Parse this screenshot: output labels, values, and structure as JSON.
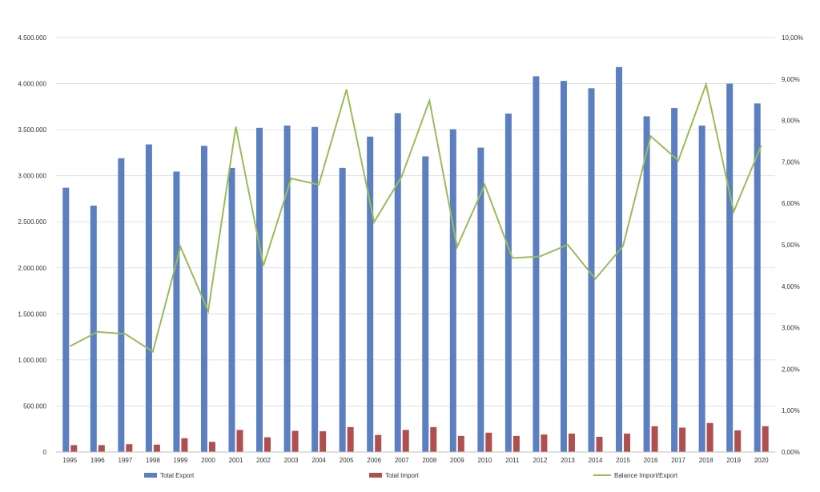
{
  "chart_data": {
    "type": "bar",
    "categories": [
      "1995",
      "1996",
      "1997",
      "1998",
      "1999",
      "2000",
      "2001",
      "2002",
      "2003",
      "2004",
      "2005",
      "2006",
      "2007",
      "2008",
      "2009",
      "2010",
      "2011",
      "2012",
      "2013",
      "2014",
      "2015",
      "2016",
      "2017",
      "2018",
      "2019",
      "2020"
    ],
    "series": [
      {
        "name": "Total Export",
        "type": "bar",
        "axis": "left",
        "color": "#5b7fc0",
        "values": [
          2870000,
          2675000,
          3190000,
          3340000,
          3045000,
          3325000,
          3085000,
          3520000,
          3545000,
          3530000,
          3085000,
          3425000,
          3680000,
          3210000,
          3505000,
          3305000,
          3675000,
          4080000,
          4030000,
          3950000,
          4180000,
          3645000,
          3735000,
          3545000,
          4000000,
          3785000
        ]
      },
      {
        "name": "Total Import",
        "type": "bar",
        "axis": "left",
        "color": "#b0504e",
        "values": [
          75000,
          75000,
          85000,
          80000,
          150000,
          110000,
          240000,
          160000,
          230000,
          225000,
          270000,
          185000,
          240000,
          270000,
          175000,
          210000,
          175000,
          190000,
          200000,
          165000,
          200000,
          280000,
          265000,
          315000,
          235000,
          280000
        ]
      },
      {
        "name": "Balance Import/Export",
        "type": "line",
        "axis": "right",
        "color": "#9bbb59",
        "values": [
          2.55,
          2.9,
          2.85,
          2.42,
          4.95,
          3.4,
          7.85,
          4.5,
          6.6,
          6.45,
          8.75,
          5.55,
          6.65,
          8.48,
          4.95,
          6.45,
          4.68,
          4.72,
          5.0,
          4.18,
          4.97,
          7.62,
          7.03,
          8.87,
          5.8,
          7.4
        ]
      }
    ],
    "left_axis": {
      "ylim": [
        0,
        4500000
      ],
      "ticks": [
        "0",
        "500.000",
        "1.000.000",
        "1.500.000",
        "2.000.000",
        "2.500.000",
        "3.000.000",
        "3.500.000",
        "4.000.000",
        "4.500.000"
      ]
    },
    "right_axis": {
      "ylim": [
        0,
        10
      ],
      "ticks": [
        "0,00%",
        "1,00%",
        "2,00%",
        "3,00%",
        "4,00%",
        "5,00%",
        "6,00%",
        "7,00%",
        "8,00%",
        "9,00%",
        "10,00%"
      ]
    },
    "grid": true,
    "legend_position": "bottom",
    "legend": [
      "Total Export",
      "Total Import",
      "Balance Import/Export"
    ],
    "title": "",
    "xlabel": "",
    "ylabel": ""
  }
}
